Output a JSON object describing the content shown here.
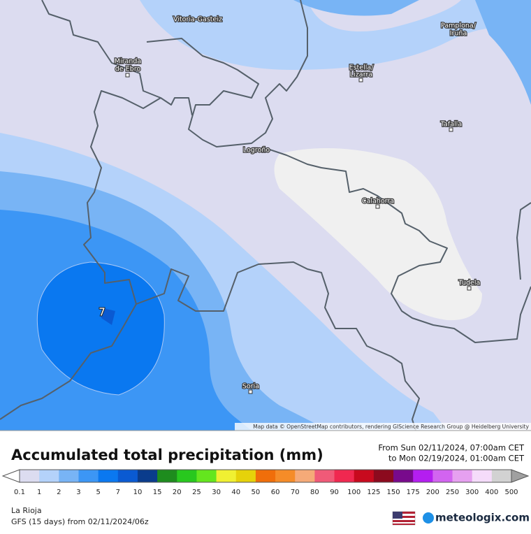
{
  "map": {
    "cities": [
      "Vitoria-Gasteiz",
      "Pamplona/",
      "Iruña",
      "Miranda",
      "de Ebro",
      "Estella/",
      "Lizarra",
      "Tafalla",
      "Logroño",
      "Calahorra",
      "Tudela",
      "Soria"
    ],
    "value_label": "7",
    "attribution": "Map data © OpenStreetMap contributors, rendering GIScience Research Group @ Heidelberg University"
  },
  "header": {
    "title": "Accumulated total precipitation (mm)",
    "from": "From Sun 02/11/2024, 07:00am CET",
    "to": "to Mon 02/19/2024, 01:00am CET"
  },
  "legend": {
    "labels": [
      0.1,
      1,
      2,
      3,
      5,
      7,
      10,
      15,
      20,
      25,
      30,
      40,
      50,
      60,
      70,
      80,
      90,
      100,
      125,
      150,
      175,
      200,
      250,
      300,
      400,
      500
    ],
    "colors": [
      "#dcdcf0",
      "#b4d2fa",
      "#78b4f5",
      "#3c96f5",
      "#0a78f0",
      "#0a5ad2",
      "#0a3c8c",
      "#1e8c1e",
      "#28c81e",
      "#64e61e",
      "#f0f032",
      "#e6d20a",
      "#f06e0a",
      "#f58c28",
      "#f5aa78",
      "#f05a78",
      "#f02850",
      "#c80a1e",
      "#8c0a1e",
      "#780a8c",
      "#b41ef0",
      "#d264f0",
      "#e6a0f0",
      "#f5dcfa",
      "#d2d2d2"
    ],
    "over_color": "#a0a0a0",
    "under_color": "#ffffff"
  },
  "footer": {
    "region": "La Rioja",
    "model": "GFS (15 days) from 02/11/2024/06z",
    "brand": "meteologix.com"
  }
}
